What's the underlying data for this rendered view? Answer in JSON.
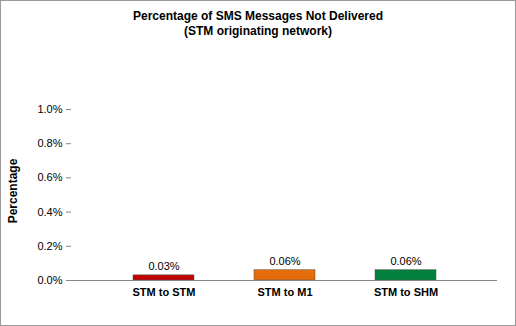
{
  "chart_data": {
    "type": "bar",
    "title": "Percentage of SMS Messages Not Delivered",
    "subtitle": "(STM originating network)",
    "y_label": "Percentage",
    "categories": [
      "STM to STM",
      "STM to M1",
      "STM to SHM"
    ],
    "values": [
      0.03,
      0.06,
      0.06
    ],
    "value_labels": [
      "0.03%",
      "0.06%",
      "0.06%"
    ],
    "colors": [
      "#c00000",
      "#e46c0a",
      "#00803c"
    ],
    "ylim": [
      0,
      1
    ],
    "yticks": [
      {
        "value": 0,
        "label": "0.0%"
      },
      {
        "value": 0.2,
        "label": "0.2%"
      },
      {
        "value": 0.4,
        "label": "0.4%"
      },
      {
        "value": 0.6,
        "label": "0.6%"
      },
      {
        "value": 0.8,
        "label": "0.8%"
      },
      {
        "value": 1,
        "label": "1.0%"
      }
    ],
    "grid": false,
    "data_labels": true
  }
}
